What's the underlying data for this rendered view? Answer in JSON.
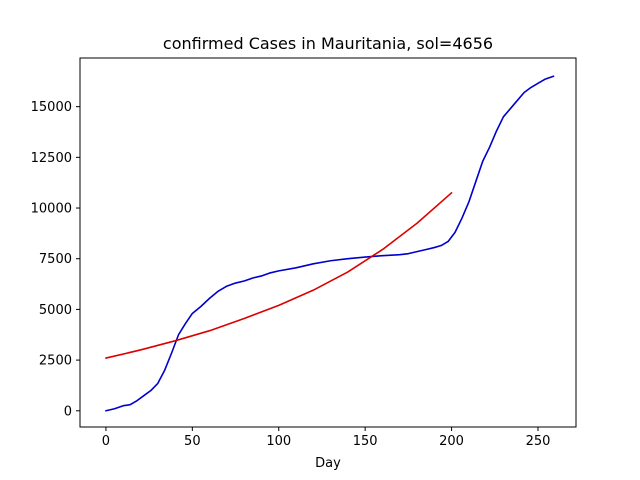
{
  "chart_data": {
    "type": "line",
    "title": "confirmed Cases in Mauritania, sol=4656",
    "xlabel": "Day",
    "ylabel": "",
    "xlim": [
      -15,
      272
    ],
    "ylim": [
      -800,
      17400
    ],
    "xticks": [
      0,
      50,
      100,
      150,
      200,
      250
    ],
    "yticks": [
      0,
      2500,
      5000,
      7500,
      10000,
      12500,
      15000
    ],
    "grid": false,
    "series": [
      {
        "color": "#0000cc",
        "x": [
          0,
          5,
          10,
          14,
          18,
          22,
          26,
          30,
          34,
          38,
          42,
          46,
          50,
          55,
          60,
          65,
          70,
          75,
          80,
          85,
          90,
          95,
          100,
          110,
          120,
          130,
          140,
          150,
          160,
          170,
          175,
          180,
          185,
          190,
          194,
          198,
          202,
          206,
          210,
          214,
          218,
          222,
          226,
          230,
          234,
          238,
          242,
          246,
          250,
          254,
          259
        ],
        "values": [
          0,
          100,
          250,
          300,
          500,
          750,
          1000,
          1350,
          2000,
          2850,
          3750,
          4300,
          4800,
          5150,
          5550,
          5900,
          6150,
          6300,
          6400,
          6550,
          6650,
          6800,
          6900,
          7050,
          7250,
          7400,
          7500,
          7580,
          7650,
          7700,
          7750,
          7850,
          7950,
          8050,
          8150,
          8350,
          8800,
          9500,
          10300,
          11300,
          12300,
          13000,
          13800,
          14500,
          14900,
          15300,
          15700,
          15950,
          16150,
          16350,
          16500
        ]
      },
      {
        "color": "#dd0000",
        "x": [
          0,
          20,
          40,
          60,
          80,
          100,
          120,
          140,
          160,
          180,
          200
        ],
        "values": [
          2600,
          3000,
          3450,
          3950,
          4550,
          5200,
          5950,
          6850,
          7950,
          9250,
          10750
        ]
      }
    ]
  }
}
